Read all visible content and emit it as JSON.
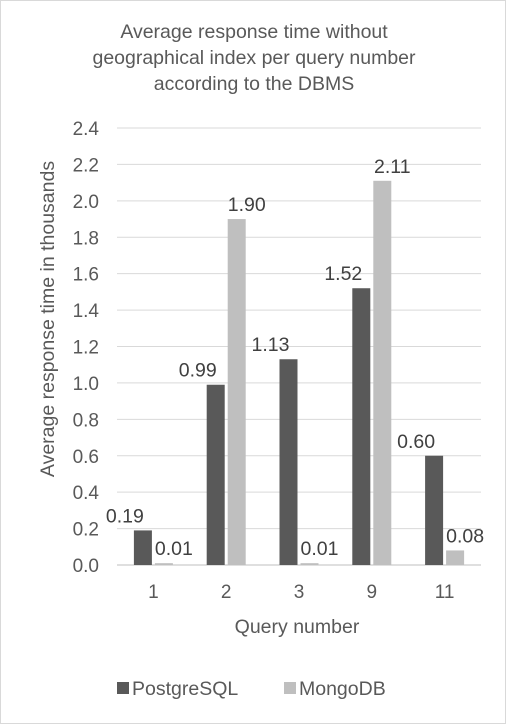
{
  "chart_data": {
    "type": "bar",
    "title_lines": [
      "Average response time without",
      "geographical index per query number",
      "according to the DBMS"
    ],
    "xlabel": "Query number",
    "ylabel": "Average response time in thousands",
    "categories": [
      "1",
      "2",
      "3",
      "9",
      "11"
    ],
    "series": [
      {
        "name": "PostgreSQL",
        "values": [
          0.19,
          0.99,
          1.13,
          1.52,
          0.6
        ],
        "labels": [
          "0.19",
          "0.99",
          "1.13",
          "1.52",
          "0.60"
        ],
        "color": "#595959"
      },
      {
        "name": "MongoDB",
        "values": [
          0.01,
          1.9,
          0.01,
          2.11,
          0.08
        ],
        "labels": [
          "0.01",
          "1.90",
          "0.01",
          "2.11",
          "0.08"
        ],
        "color": "#bfbfbf"
      }
    ],
    "ylim": [
      0,
      2.4
    ],
    "yticks": [
      "0.0",
      "0.2",
      "0.4",
      "0.6",
      "0.8",
      "1.0",
      "1.2",
      "1.4",
      "1.6",
      "1.8",
      "2.0",
      "2.2",
      "2.4"
    ],
    "grid": true,
    "legend_position": "bottom"
  },
  "colors": {
    "text": "#595959",
    "gridline": "#d9d9d9",
    "axis": "#bfbfbf"
  }
}
